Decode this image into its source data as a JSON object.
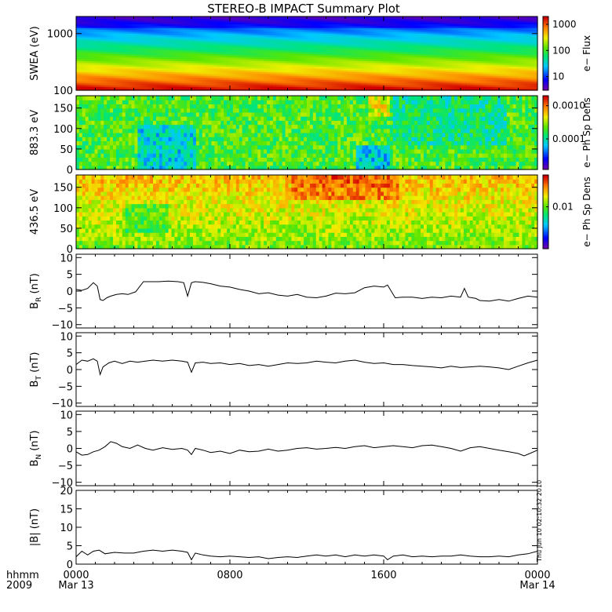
{
  "title": "STEREO-B IMPACT Summary Plot",
  "time_axis": {
    "label_line1": "hhmm",
    "label_line2": "2009",
    "ticks": [
      {
        "hour": 0,
        "label": "0000",
        "date": "Mar 13"
      },
      {
        "hour": 8,
        "label": "0800",
        "date": ""
      },
      {
        "hour": 16,
        "label": "1600",
        "date": ""
      },
      {
        "hour": 24,
        "label": "0000",
        "date": "Mar 14"
      }
    ]
  },
  "timestamp": "Thu Jun 10 02:10:32 2010",
  "chart_data": [
    {
      "type": "heatmap",
      "name": "swea",
      "ylabel": "SWEA (eV)",
      "yscale": "log",
      "ylim": [
        100,
        2000
      ],
      "yticks": [
        {
          "value": 100,
          "label": "100"
        },
        {
          "value": 1000,
          "label": "1000"
        }
      ],
      "colorbar": {
        "label": "e− Flux",
        "scale": "log",
        "range": [
          3,
          2000
        ],
        "ticks": [
          {
            "value": 10,
            "label": "10"
          },
          {
            "value": 100,
            "label": "100"
          },
          {
            "value": 1000,
            "label": "1000"
          }
        ]
      },
      "xlim": [
        0,
        24
      ]
    },
    {
      "type": "heatmap",
      "name": "pad883",
      "ylabel": "883.3 eV",
      "yscale": "linear",
      "ylim": [
        0,
        180
      ],
      "yticks": [
        {
          "value": 0,
          "label": "0"
        },
        {
          "value": 50,
          "label": "50"
        },
        {
          "value": 100,
          "label": "100"
        },
        {
          "value": 150,
          "label": "150"
        }
      ],
      "colorbar": {
        "label": "e− Ph Sp Dens",
        "scale": "log",
        "range": [
          1.2e-05,
          0.002
        ],
        "ticks": [
          {
            "value": 0.0001,
            "label": "0.0001"
          },
          {
            "value": 0.001,
            "label": "0.0010"
          }
        ]
      },
      "xlim": [
        0,
        24
      ]
    },
    {
      "type": "heatmap",
      "name": "pad436",
      "ylabel": "436.5 eV",
      "yscale": "linear",
      "ylim": [
        0,
        180
      ],
      "yticks": [
        {
          "value": 0,
          "label": "0"
        },
        {
          "value": 50,
          "label": "50"
        },
        {
          "value": 100,
          "label": "100"
        },
        {
          "value": 150,
          "label": "150"
        }
      ],
      "colorbar": {
        "label": "e− Ph Sp Dens",
        "scale": "log",
        "range": [
          0.0012,
          0.05
        ],
        "ticks": [
          {
            "value": 0.01,
            "label": "0.01"
          }
        ]
      },
      "xlim": [
        0,
        24
      ]
    },
    {
      "type": "line",
      "name": "br",
      "ylabel_main": "B",
      "ylabel_sub": "R",
      "ylabel_unit": " (nT)",
      "ylim": [
        -11,
        11
      ],
      "yticks": [
        {
          "value": -10,
          "label": "−10"
        },
        {
          "value": -5,
          "label": "−5"
        },
        {
          "value": 0,
          "label": "0"
        },
        {
          "value": 5,
          "label": "5"
        },
        {
          "value": 10,
          "label": "10"
        }
      ],
      "xlim": [
        0,
        24
      ],
      "x": [
        0,
        0.3,
        0.6,
        0.9,
        1.1,
        1.25,
        1.4,
        1.6,
        1.8,
        2.1,
        2.4,
        2.7,
        3.1,
        3.5,
        3.8,
        4.3,
        4.8,
        5.3,
        5.6,
        5.8,
        6.0,
        6.2,
        6.6,
        7.0,
        7.5,
        8.0,
        8.5,
        9.0,
        9.5,
        10.0,
        10.5,
        11.0,
        11.5,
        12.0,
        12.5,
        13.0,
        13.5,
        14.0,
        14.5,
        15.0,
        15.5,
        16.0,
        16.2,
        16.6,
        17.0,
        17.5,
        18.0,
        18.5,
        19.0,
        19.5,
        20.0,
        20.2,
        20.4,
        20.6,
        20.8,
        21.0,
        21.5,
        22.0,
        22.5,
        23.0,
        23.5,
        24.0
      ],
      "y": [
        0.5,
        0.2,
        0.8,
        2.5,
        1.5,
        -2.5,
        -2.8,
        -2.0,
        -1.5,
        -1.0,
        -0.8,
        -1.0,
        -0.2,
        2.8,
        2.8,
        2.8,
        3.0,
        2.8,
        2.5,
        -1.5,
        2.5,
        2.8,
        2.6,
        2.2,
        1.5,
        1.2,
        0.5,
        0.0,
        -0.8,
        -0.5,
        -1.2,
        -1.5,
        -1.0,
        -1.8,
        -2.0,
        -1.5,
        -0.6,
        -0.8,
        -0.5,
        1.0,
        1.5,
        1.2,
        1.8,
        -2.0,
        -1.8,
        -1.8,
        -2.2,
        -1.8,
        -2.0,
        -1.5,
        -1.8,
        0.8,
        -1.8,
        -2.0,
        -2.2,
        -2.8,
        -3.0,
        -2.5,
        -3.0,
        -2.2,
        -1.5,
        -1.8
      ]
    },
    {
      "type": "line",
      "name": "bt",
      "ylabel_main": "B",
      "ylabel_sub": "T",
      "ylabel_unit": " (nT)",
      "ylim": [
        -11,
        11
      ],
      "yticks": [
        {
          "value": -10,
          "label": "−10"
        },
        {
          "value": -5,
          "label": "−5"
        },
        {
          "value": 0,
          "label": "0"
        },
        {
          "value": 5,
          "label": "5"
        },
        {
          "value": 10,
          "label": "10"
        }
      ],
      "xlim": [
        0,
        24
      ],
      "x": [
        0,
        0.3,
        0.6,
        0.9,
        1.1,
        1.25,
        1.4,
        1.7,
        2.0,
        2.4,
        2.8,
        3.2,
        3.6,
        4.0,
        4.5,
        5.0,
        5.5,
        5.8,
        6.0,
        6.2,
        6.6,
        7.0,
        7.5,
        8.0,
        8.5,
        9.0,
        9.5,
        10.0,
        10.5,
        11.0,
        11.5,
        12.0,
        12.5,
        13.0,
        13.5,
        14.0,
        14.5,
        15.0,
        15.5,
        16.0,
        16.5,
        17.0,
        17.5,
        18.0,
        18.5,
        19.0,
        19.5,
        20.0,
        20.5,
        21.0,
        21.5,
        22.0,
        22.5,
        23.0,
        23.5,
        24.0
      ],
      "y": [
        1.5,
        2.8,
        2.5,
        3.2,
        2.5,
        -1.5,
        0.8,
        2.0,
        2.5,
        1.8,
        2.5,
        2.2,
        2.5,
        2.8,
        2.5,
        2.8,
        2.5,
        2.2,
        -0.8,
        2.0,
        2.2,
        1.8,
        2.0,
        1.5,
        1.8,
        1.2,
        1.5,
        1.0,
        1.5,
        2.0,
        1.8,
        2.0,
        2.5,
        2.2,
        2.0,
        2.5,
        2.8,
        2.2,
        1.8,
        2.0,
        1.5,
        1.5,
        1.2,
        1.0,
        0.8,
        0.5,
        1.0,
        0.6,
        0.8,
        1.0,
        0.8,
        0.5,
        0.0,
        1.0,
        2.0,
        2.8
      ]
    },
    {
      "type": "line",
      "name": "bn",
      "ylabel_main": "B",
      "ylabel_sub": "N",
      "ylabel_unit": " (nT)",
      "ylim": [
        -11,
        11
      ],
      "yticks": [
        {
          "value": -10,
          "label": "−10"
        },
        {
          "value": -5,
          "label": "−5"
        },
        {
          "value": 0,
          "label": "0"
        },
        {
          "value": 5,
          "label": "5"
        },
        {
          "value": 10,
          "label": "10"
        }
      ],
      "xlim": [
        0,
        24
      ],
      "x": [
        0,
        0.3,
        0.6,
        0.9,
        1.2,
        1.5,
        1.8,
        2.1,
        2.4,
        2.8,
        3.2,
        3.6,
        4.0,
        4.5,
        5.0,
        5.5,
        5.8,
        6.0,
        6.2,
        6.6,
        7.0,
        7.5,
        8.0,
        8.5,
        9.0,
        9.5,
        10.0,
        10.5,
        11.0,
        11.5,
        12.0,
        12.5,
        13.0,
        13.5,
        14.0,
        14.5,
        15.0,
        15.5,
        16.0,
        16.5,
        17.0,
        17.5,
        18.0,
        18.5,
        19.0,
        19.5,
        20.0,
        20.5,
        21.0,
        21.5,
        22.0,
        22.5,
        23.0,
        23.3,
        23.6,
        24.0
      ],
      "y": [
        -1.0,
        -2.0,
        -1.8,
        -1.0,
        -0.5,
        0.5,
        2.0,
        1.5,
        0.5,
        0.0,
        1.0,
        0.0,
        -0.5,
        0.2,
        -0.3,
        0.0,
        -0.5,
        -1.8,
        0.0,
        -0.5,
        -1.2,
        -0.8,
        -1.5,
        -0.5,
        -1.0,
        -0.8,
        -0.2,
        -0.8,
        -0.5,
        0.0,
        0.2,
        -0.2,
        0.0,
        0.3,
        0.0,
        0.5,
        0.8,
        0.2,
        0.5,
        0.8,
        0.5,
        0.2,
        0.8,
        1.0,
        0.5,
        0.0,
        -0.8,
        0.2,
        0.5,
        0.0,
        -0.5,
        -1.0,
        -1.5,
        -2.2,
        -1.5,
        -0.5
      ]
    },
    {
      "type": "line",
      "name": "bmag",
      "ylabel_main": "|B|",
      "ylabel_sub": "",
      "ylabel_unit": " (nT)",
      "ylim": [
        0,
        20
      ],
      "yticks": [
        {
          "value": 0,
          "label": "0"
        },
        {
          "value": 5,
          "label": "5"
        },
        {
          "value": 10,
          "label": "10"
        },
        {
          "value": 15,
          "label": "15"
        },
        {
          "value": 20,
          "label": "20"
        }
      ],
      "xlim": [
        0,
        24
      ],
      "x": [
        0,
        0.3,
        0.6,
        0.9,
        1.2,
        1.5,
        2.0,
        2.5,
        3.0,
        3.5,
        4.0,
        4.5,
        5.0,
        5.5,
        5.8,
        6.0,
        6.2,
        6.6,
        7.0,
        7.5,
        8.0,
        8.5,
        9.0,
        9.5,
        10.0,
        10.5,
        11.0,
        11.5,
        12.0,
        12.5,
        13.0,
        13.5,
        14.0,
        14.5,
        15.0,
        15.5,
        16.0,
        16.2,
        16.5,
        17.0,
        17.5,
        18.0,
        18.5,
        19.0,
        19.5,
        20.0,
        20.5,
        21.0,
        21.5,
        22.0,
        22.5,
        23.0,
        23.5,
        24.0
      ],
      "y": [
        2.0,
        3.5,
        2.5,
        3.5,
        3.8,
        2.8,
        3.2,
        3.0,
        3.0,
        3.5,
        3.8,
        3.5,
        3.8,
        3.5,
        3.2,
        1.2,
        3.0,
        2.5,
        2.2,
        2.0,
        2.2,
        2.0,
        1.8,
        2.0,
        1.5,
        1.8,
        2.0,
        1.8,
        2.2,
        2.5,
        2.2,
        2.5,
        2.0,
        2.5,
        2.2,
        2.5,
        2.2,
        1.2,
        2.2,
        2.5,
        2.0,
        2.2,
        2.0,
        2.2,
        2.2,
        2.5,
        2.2,
        2.0,
        2.0,
        2.2,
        2.0,
        2.5,
        2.8,
        3.5
      ]
    }
  ]
}
